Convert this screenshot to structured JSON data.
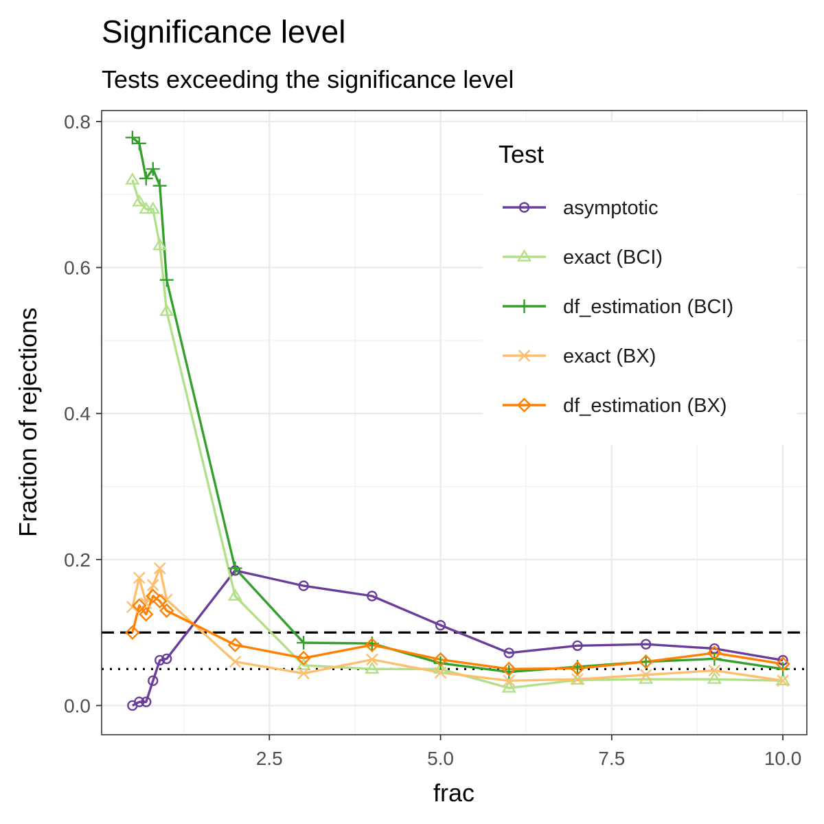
{
  "chart_data": {
    "type": "line",
    "title": "Significance level",
    "subtitle": "Tests exceeding the significance level",
    "xlabel": "frac",
    "ylabel": "Fraction of rejections",
    "xlim": [
      0.05,
      10.35
    ],
    "ylim": [
      -0.04,
      0.815
    ],
    "x_ticks": [
      2.5,
      5.0,
      7.5,
      10.0
    ],
    "x_tick_labels": [
      "2.5",
      "5.0",
      "7.5",
      "10.0"
    ],
    "y_ticks": [
      0.0,
      0.2,
      0.4,
      0.6,
      0.8
    ],
    "y_tick_labels": [
      "0.0",
      "0.2",
      "0.4",
      "0.6",
      "0.8"
    ],
    "grid": true,
    "legend_title": "Test",
    "legend_position": "top-right",
    "x": [
      0.5,
      0.6,
      0.7,
      0.8,
      0.9,
      1.0,
      2,
      3,
      4,
      5,
      6,
      7,
      8,
      9,
      10
    ],
    "series": [
      {
        "name": "asymptotic",
        "color": "#6a3d9a",
        "shape": "circle",
        "values": [
          0.0,
          0.005,
          0.005,
          0.034,
          0.062,
          0.064,
          0.185,
          0.164,
          0.15,
          0.11,
          0.072,
          0.082,
          0.084,
          0.078,
          0.062
        ]
      },
      {
        "name": "exact (BCI)",
        "color": "#b2df8a",
        "shape": "triangle",
        "values": [
          0.72,
          0.69,
          0.68,
          0.68,
          0.63,
          0.54,
          0.15,
          0.055,
          0.05,
          0.05,
          0.024,
          0.035,
          0.036,
          0.036,
          0.034
        ]
      },
      {
        "name": "df_estimation (BCI)",
        "color": "#33a02c",
        "shape": "plus",
        "values": [
          0.778,
          0.77,
          0.722,
          0.735,
          0.712,
          0.583,
          0.188,
          0.086,
          0.085,
          0.058,
          0.046,
          0.053,
          0.06,
          0.064,
          0.05
        ]
      },
      {
        "name": "exact (BX)",
        "color": "#fdbf6f",
        "shape": "cross",
        "values": [
          0.135,
          0.175,
          0.14,
          0.165,
          0.188,
          0.145,
          0.06,
          0.044,
          0.063,
          0.045,
          0.034,
          0.036,
          0.042,
          0.048,
          0.034
        ]
      },
      {
        "name": "df_estimation (BX)",
        "color": "#ff7f00",
        "shape": "diamond",
        "values": [
          0.1,
          0.137,
          0.125,
          0.15,
          0.143,
          0.13,
          0.083,
          0.065,
          0.083,
          0.063,
          0.05,
          0.051,
          0.06,
          0.072,
          0.057
        ]
      }
    ],
    "reference_lines": [
      {
        "y": 0.1,
        "style": "dashed",
        "color": "#000000"
      },
      {
        "y": 0.05,
        "style": "dotted",
        "color": "#000000"
      }
    ]
  }
}
